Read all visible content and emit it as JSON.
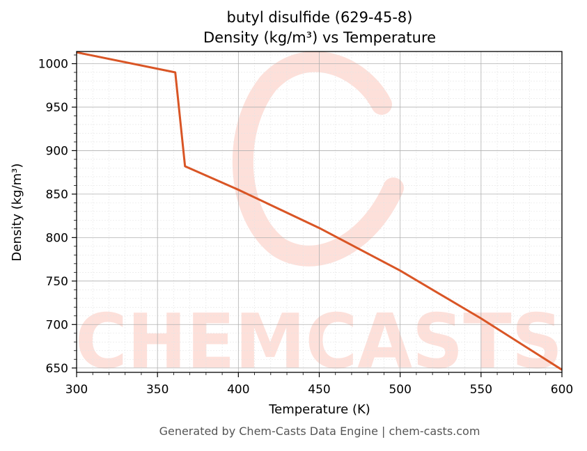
{
  "chart_data": {
    "type": "line",
    "title": "butyl disulfide (629-45-8)",
    "subtitle": "Density (kg/m³) vs Temperature",
    "xlabel": "Temperature (K)",
    "ylabel": "Density (kg/m³)",
    "xlim": [
      300,
      600
    ],
    "ylim": [
      645,
      1014
    ],
    "x_ticks": [
      300,
      350,
      400,
      450,
      500,
      550,
      600
    ],
    "y_ticks": [
      650,
      700,
      750,
      800,
      850,
      900,
      950,
      1000
    ],
    "grid": true,
    "line_color": "#d95525",
    "series": [
      {
        "x": [
          300,
          361,
          367,
          400,
          450,
          500,
          550,
          600
        ],
        "y": [
          1013,
          990,
          882,
          855,
          811,
          762,
          707,
          648
        ]
      }
    ]
  },
  "watermark": {
    "text": "CHEMCASTS",
    "color": "#fde0da"
  },
  "footer": "Generated by Chem-Casts Data Engine | chem-casts.com"
}
